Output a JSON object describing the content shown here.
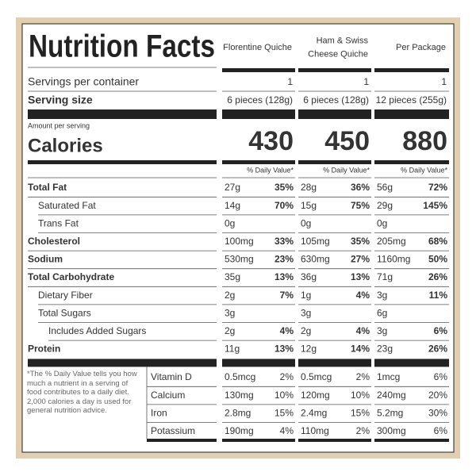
{
  "title": "Nutrition Facts",
  "columns": [
    {
      "lines": [
        "Florentine Quiche"
      ]
    },
    {
      "lines": [
        "Ham & Swiss",
        "Cheese Quiche"
      ]
    },
    {
      "lines": [
        "Per Package"
      ]
    }
  ],
  "servings": {
    "label": "Servings per container",
    "values": [
      "1",
      "1",
      "1"
    ]
  },
  "serving_size": {
    "label": "Serving size",
    "values": [
      "6 pieces (128g)",
      "6 pieces (128g)",
      "12 pieces (255g)"
    ]
  },
  "amount_per_serving": "Amount per serving",
  "calories": {
    "label": "Calories",
    "values": [
      430,
      450,
      880
    ]
  },
  "daily_value_header": "% Daily Value*",
  "nutrients": [
    {
      "name": "Total Fat",
      "indent": 0,
      "cells": [
        {
          "amount": "27g",
          "dv": "35%"
        },
        {
          "amount": "28g",
          "dv": "36%"
        },
        {
          "amount": "56g",
          "dv": "72%"
        }
      ]
    },
    {
      "name": "Saturated Fat",
      "indent": 1,
      "cells": [
        {
          "amount": "14g",
          "dv": "70%"
        },
        {
          "amount": "15g",
          "dv": "75%"
        },
        {
          "amount": "29g",
          "dv": "145%"
        }
      ]
    },
    {
      "name": "Trans Fat",
      "indent": 1,
      "cells": [
        {
          "amount": "0g"
        },
        {
          "amount": "0g"
        },
        {
          "amount": "0g"
        }
      ]
    },
    {
      "name": "Cholesterol",
      "indent": 0,
      "cells": [
        {
          "amount": "100mg",
          "dv": "33%"
        },
        {
          "amount": "105mg",
          "dv": "35%"
        },
        {
          "amount": "205mg",
          "dv": "68%"
        }
      ]
    },
    {
      "name": "Sodium",
      "indent": 0,
      "cells": [
        {
          "amount": "530mg",
          "dv": "23%"
        },
        {
          "amount": "630mg",
          "dv": "27%"
        },
        {
          "amount": "1160mg",
          "dv": "50%"
        }
      ]
    },
    {
      "name": "Total Carbohydrate",
      "indent": 0,
      "cells": [
        {
          "amount": "35g",
          "dv": "13%"
        },
        {
          "amount": "36g",
          "dv": "13%"
        },
        {
          "amount": "71g",
          "dv": "26%"
        }
      ]
    },
    {
      "name": "Dietary Fiber",
      "indent": 1,
      "cells": [
        {
          "amount": "2g",
          "dv": "7%"
        },
        {
          "amount": "1g",
          "dv": "4%"
        },
        {
          "amount": "3g",
          "dv": "11%"
        }
      ]
    },
    {
      "name": "Total Sugars",
      "indent": 1,
      "cells": [
        {
          "amount": "3g"
        },
        {
          "amount": "3g"
        },
        {
          "amount": "6g"
        }
      ]
    },
    {
      "name": "Includes Added Sugars",
      "indent": 2,
      "cells": [
        {
          "amount": "2g",
          "dv": "4%"
        },
        {
          "amount": "2g",
          "dv": "4%"
        },
        {
          "amount": "3g",
          "dv": "6%"
        }
      ]
    },
    {
      "name": "Protein",
      "indent": 0,
      "cells": [
        {
          "amount": "11g",
          "dv": "13%"
        },
        {
          "amount": "12g",
          "dv": "14%"
        },
        {
          "amount": "23g",
          "dv": "26%"
        }
      ]
    }
  ],
  "footnote": "*The % Daily Value tells you how much a nutrient in a serving of food contributes to a daily diet. 2,000 calories a day is used for general nutrition advice.",
  "vitamins": [
    {
      "name": "Vitamin D",
      "cells": [
        {
          "amount": "0.5mcg",
          "dv": "2%"
        },
        {
          "amount": "0.5mcg",
          "dv": "2%"
        },
        {
          "amount": "1mcg",
          "dv": "6%"
        }
      ]
    },
    {
      "name": "Calcium",
      "cells": [
        {
          "amount": "130mg",
          "dv": "10%"
        },
        {
          "amount": "120mg",
          "dv": "10%"
        },
        {
          "amount": "240mg",
          "dv": "20%"
        }
      ]
    },
    {
      "name": "Iron",
      "cells": [
        {
          "amount": "2.8mg",
          "dv": "15%"
        },
        {
          "amount": "2.4mg",
          "dv": "15%"
        },
        {
          "amount": "5.2mg",
          "dv": "30%"
        }
      ]
    },
    {
      "name": "Potassium",
      "cells": [
        {
          "amount": "190mg",
          "dv": "4%"
        },
        {
          "amount": "110mg",
          "dv": "2%"
        },
        {
          "amount": "300mg",
          "dv": "6%"
        }
      ]
    }
  ]
}
